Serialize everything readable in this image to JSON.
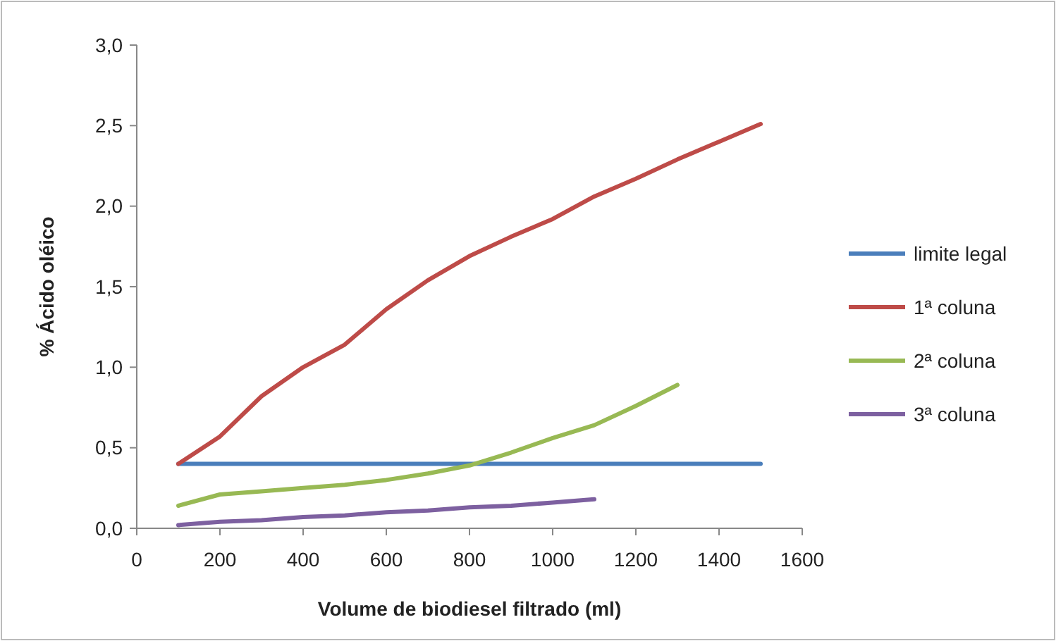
{
  "chart_data": {
    "type": "line",
    "xlabel": "Volume de biodiesel filtrado (ml)",
    "ylabel": "% Ácido oléico",
    "xlim": [
      0,
      1600
    ],
    "xticks": [
      0,
      200,
      400,
      600,
      800,
      1000,
      1200,
      1400,
      1600
    ],
    "ylim": [
      0,
      3
    ],
    "yticks": [
      {
        "value": 0,
        "label": "0,0"
      },
      {
        "value": 0.5,
        "label": "0,5"
      },
      {
        "value": 1,
        "label": "1,0"
      },
      {
        "value": 1.5,
        "label": "1,5"
      },
      {
        "value": 2,
        "label": "2,0"
      },
      {
        "value": 2.5,
        "label": "2,5"
      },
      {
        "value": 3,
        "label": "3,0"
      }
    ],
    "grid": false,
    "legend": "right",
    "marker": "none",
    "series": [
      {
        "name": "limite legal",
        "color": "#4a7ebb",
        "x": [
          100,
          1500
        ],
        "values": [
          0.4,
          0.4
        ]
      },
      {
        "name": "1ª coluna",
        "color": "#be4b48",
        "x": [
          100,
          200,
          300,
          400,
          500,
          600,
          700,
          800,
          900,
          1000,
          1100,
          1200,
          1300,
          1400,
          1500
        ],
        "values": [
          0.4,
          0.57,
          0.82,
          1.0,
          1.14,
          1.36,
          1.54,
          1.69,
          1.81,
          1.92,
          2.06,
          2.17,
          2.29,
          2.4,
          2.51
        ]
      },
      {
        "name": "2ª coluna",
        "color": "#98b954",
        "x": [
          100,
          200,
          300,
          400,
          500,
          600,
          700,
          800,
          900,
          1000,
          1100,
          1200,
          1300
        ],
        "values": [
          0.14,
          0.21,
          0.23,
          0.25,
          0.27,
          0.3,
          0.34,
          0.39,
          0.47,
          0.56,
          0.64,
          0.76,
          0.89
        ]
      },
      {
        "name": "3ª coluna",
        "color": "#7d60a0",
        "x": [
          100,
          200,
          300,
          400,
          500,
          600,
          700,
          800,
          900,
          1000,
          1100
        ],
        "values": [
          0.02,
          0.04,
          0.05,
          0.07,
          0.08,
          0.1,
          0.11,
          0.13,
          0.14,
          0.16,
          0.18
        ]
      }
    ]
  }
}
